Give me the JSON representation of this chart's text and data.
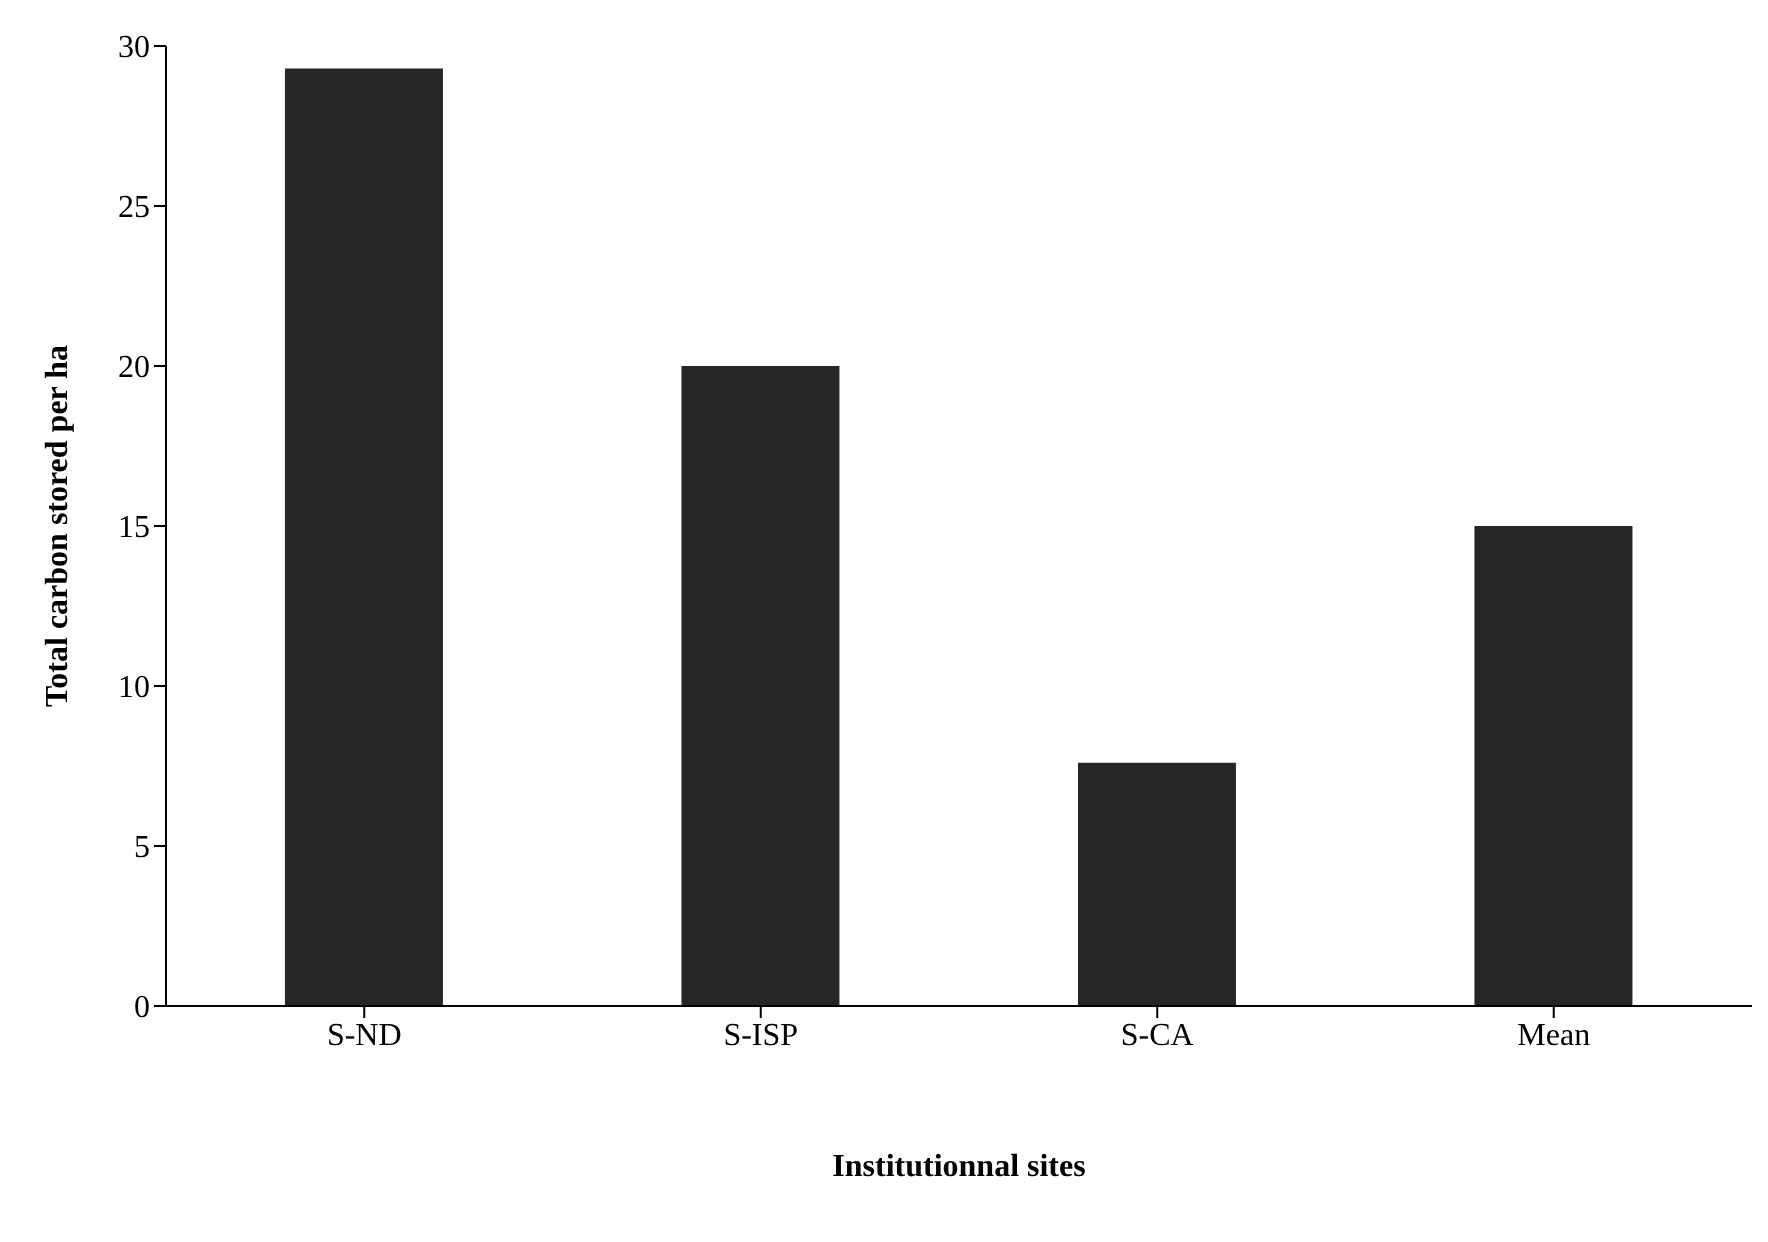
{
  "chart_data": {
    "type": "bar",
    "xlabel": "Institutionnal sites",
    "ylabel": "Total carbon stored per ha",
    "categories": [
      "S-ND",
      "S-ISP",
      "S-CA",
      "Mean"
    ],
    "values": [
      29.3,
      20.0,
      7.6,
      15.0
    ],
    "color": "#262626",
    "ylim": [
      0,
      30
    ],
    "yticks": [
      0,
      5,
      10,
      15,
      20,
      25,
      30
    ],
    "grid": false,
    "legend": false
  }
}
